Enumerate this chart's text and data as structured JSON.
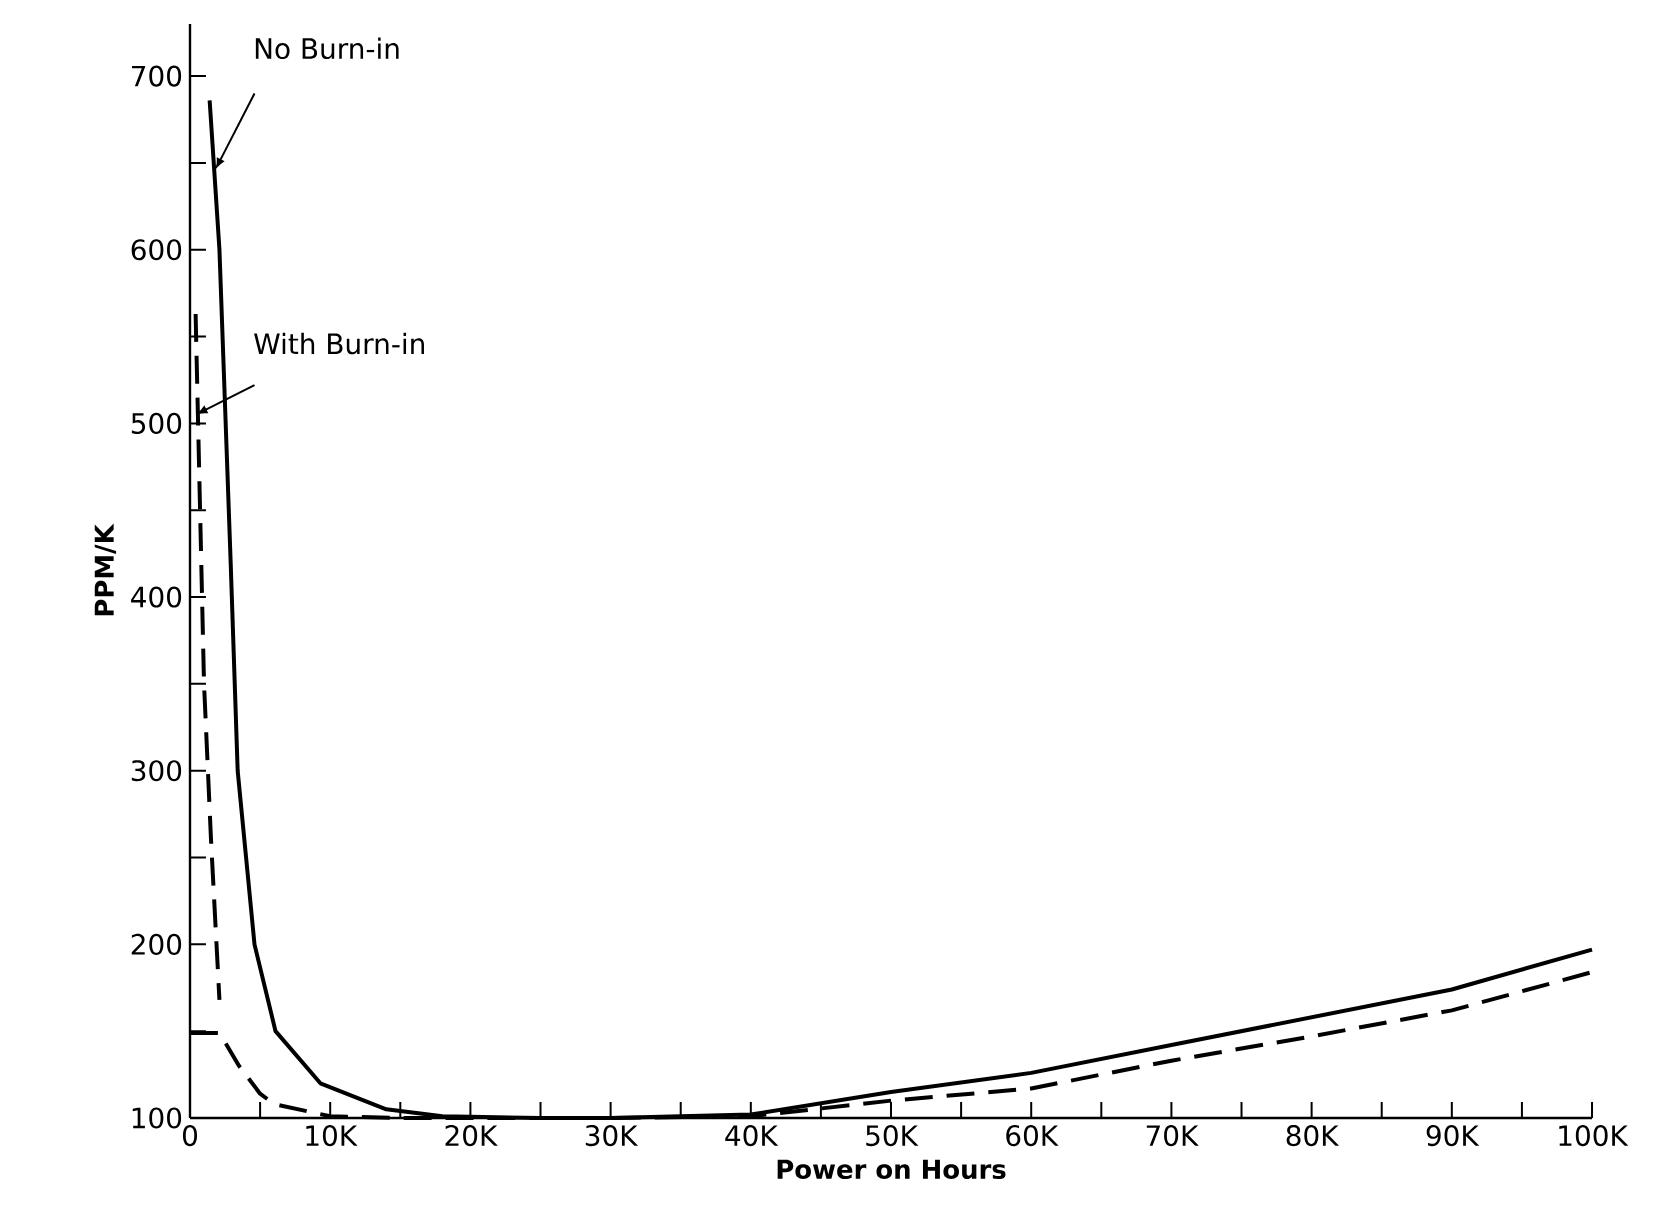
{
  "chart_data": {
    "type": "line",
    "xlabel": "Power on Hours",
    "ylabel": "PPM/K",
    "xlim": [
      0,
      100000
    ],
    "ylim": [
      100,
      730
    ],
    "xticks": [
      {
        "value": 0,
        "label": "0"
      },
      {
        "value": 5000,
        "label": null
      },
      {
        "value": 10000,
        "label": "10K"
      },
      {
        "value": 15000,
        "label": null
      },
      {
        "value": 20000,
        "label": "20K"
      },
      {
        "value": 25000,
        "label": null
      },
      {
        "value": 30000,
        "label": "30K"
      },
      {
        "value": 35000,
        "label": null
      },
      {
        "value": 40000,
        "label": "40K"
      },
      {
        "value": 45000,
        "label": null
      },
      {
        "value": 50000,
        "label": "50K"
      },
      {
        "value": 55000,
        "label": null
      },
      {
        "value": 60000,
        "label": "60K"
      },
      {
        "value": 65000,
        "label": null
      },
      {
        "value": 70000,
        "label": "70K"
      },
      {
        "value": 75000,
        "label": null
      },
      {
        "value": 80000,
        "label": "80K"
      },
      {
        "value": 85000,
        "label": null
      },
      {
        "value": 90000,
        "label": "90K"
      },
      {
        "value": 95000,
        "label": null
      },
      {
        "value": 100000,
        "label": "100K"
      }
    ],
    "yticks": [
      100,
      {
        "value": 150,
        "label": null
      },
      200,
      {
        "value": 250,
        "label": null
      },
      300,
      {
        "value": 350,
        "label": null
      },
      400,
      {
        "value": 450,
        "label": null
      },
      500,
      {
        "value": 550,
        "label": null
      },
      600,
      {
        "value": 650,
        "label": null
      },
      700
    ],
    "grid": false,
    "legend": false,
    "marker": "none",
    "series": [
      {
        "name": "No Burn-in",
        "color": "#000000",
        "line_style": "solid",
        "x": [
          1400,
          2100,
          2900,
          3400,
          4600,
          6100,
          9300,
          14000,
          18000,
          25000,
          30000,
          40000,
          50000,
          60000,
          70000,
          80000,
          90000,
          100000
        ],
        "values": [
          686,
          600,
          420,
          300,
          200,
          150,
          120,
          105,
          101,
          100,
          100,
          102,
          115,
          126,
          142,
          158,
          174,
          197
        ]
      },
      {
        "name": "With Burn-in",
        "color": "#000000",
        "line_style": "dashed",
        "x": [
          400,
          1000,
          1500,
          2100
        ],
        "values": [
          563,
          350,
          260,
          168
        ]
      },
      {
        "color": "#000000",
        "line_style": "dashed",
        "x": [
          0,
          2100,
          3500,
          5000,
          6000,
          10000,
          15000,
          20000,
          30000,
          40000,
          50000,
          60000,
          70000,
          80000,
          90000,
          100000
        ],
        "values": [
          149,
          149,
          130,
          114,
          108,
          101,
          100,
          100,
          100,
          101,
          110,
          117,
          133,
          147,
          162,
          184
        ]
      }
    ]
  }
}
